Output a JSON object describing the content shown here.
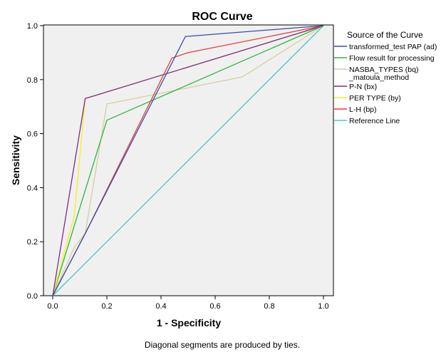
{
  "chart_data": {
    "type": "line",
    "title": "ROC Curve",
    "xlabel": "1 - Specificity",
    "ylabel": "Sensitivity",
    "xlim": [
      0,
      1
    ],
    "ylim": [
      0,
      1
    ],
    "xticks": [
      "0.0",
      "0.2",
      "0.4",
      "0.6",
      "0.8",
      "1.0"
    ],
    "yticks": [
      "0.0",
      "0.2",
      "0.4",
      "0.6",
      "0.8",
      "1.0"
    ],
    "grid": false,
    "legend_title": "Source of the Curve",
    "legend_position": "right",
    "footnote": "Diagonal segments are produced by ties.",
    "series": [
      {
        "name": "transformed_test PAP (ad)",
        "color": "#3a4fa6",
        "x": [
          0,
          0.12,
          0.49,
          1.0
        ],
        "y": [
          0,
          0.23,
          0.96,
          1.0
        ]
      },
      {
        "name": "Flow result for processing",
        "color": "#2db83d",
        "x": [
          0,
          0.2,
          1.0
        ],
        "y": [
          0,
          0.65,
          1.0
        ]
      },
      {
        "name": "NASBA_TYPES (bq)\n_matoula_method",
        "color": "#d4cfa0",
        "x": [
          0,
          0.08,
          0.12,
          0.2,
          0.7,
          1.0
        ],
        "y": [
          0,
          0.18,
          0.23,
          0.71,
          0.81,
          1.0
        ]
      },
      {
        "name": "P-N (bx)",
        "color": "#7b2a8c",
        "x": [
          0,
          0.12,
          1.0
        ],
        "y": [
          0,
          0.73,
          1.0
        ]
      },
      {
        "name": "PER TYPE (by)",
        "color": "#f2f21a",
        "x": [
          0,
          0.08,
          0.12,
          1.0
        ],
        "y": [
          0,
          0.3,
          0.73,
          1.0
        ]
      },
      {
        "name": "L-H (bp)",
        "color": "#e0413a",
        "x": [
          0,
          0.12,
          0.44,
          0.5,
          1.0
        ],
        "y": [
          0,
          0.23,
          0.88,
          0.9,
          1.0
        ]
      },
      {
        "name": "Reference Line",
        "color": "#4fc3c7",
        "x": [
          0,
          1.0
        ],
        "y": [
          0,
          1.0
        ]
      }
    ]
  }
}
